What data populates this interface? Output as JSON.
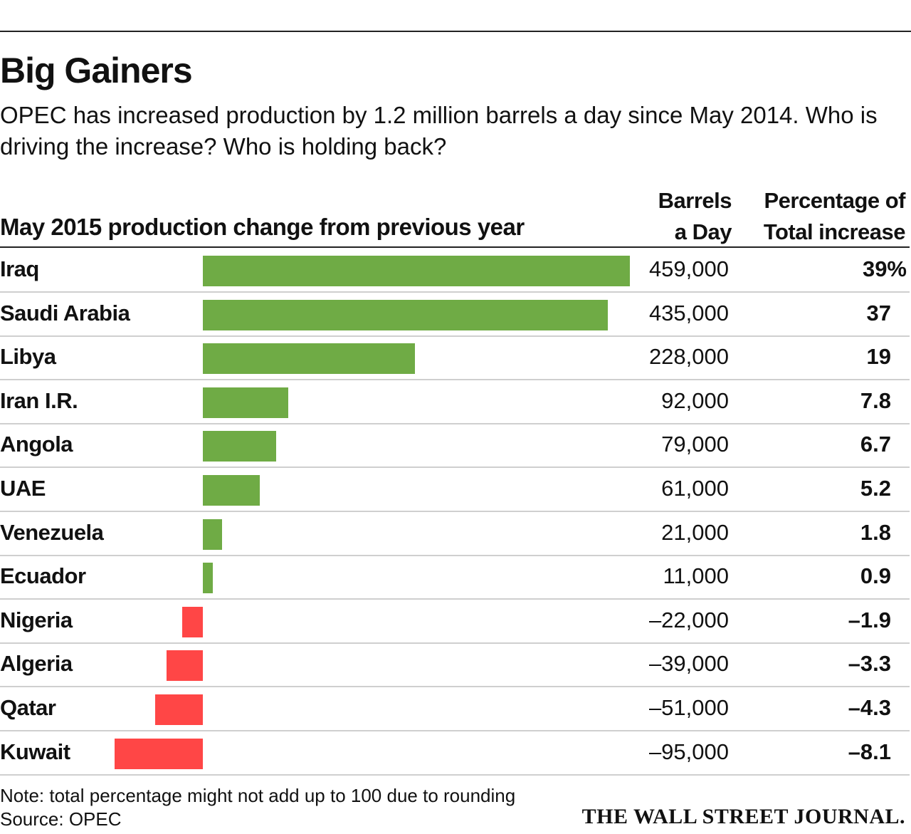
{
  "title": "Big Gainers",
  "subtitle": "OPEC has increased production by 1.2 million barrels a day since May 2014. Who is driving the increase? Who is holding back?",
  "headers": {
    "chart": "May 2015 production change from previous year",
    "bpd_line1": "Barrels",
    "bpd_line2": "a Day",
    "pct_line1": "Percentage of",
    "pct_line2": "Total increase"
  },
  "colors": {
    "positive": "#6fab45",
    "negative": "#ff4646"
  },
  "chart_data": {
    "type": "bar",
    "title": "May 2015 production change from previous year",
    "categories": [
      "Iraq",
      "Saudi Arabia",
      "Libya",
      "Iran I.R.",
      "Angola",
      "UAE",
      "Venezuela",
      "Ecuador",
      "Nigeria",
      "Algeria",
      "Qatar",
      "Kuwait"
    ],
    "values": [
      459000,
      435000,
      228000,
      92000,
      79000,
      61000,
      21000,
      11000,
      -22000,
      -39000,
      -51000,
      -95000
    ],
    "value_labels": [
      "459,000",
      "435,000",
      "228,000",
      "92,000",
      "79,000",
      "61,000",
      "21,000",
      "11,000",
      "–22,000",
      "–39,000",
      "–51,000",
      "–95,000"
    ],
    "percent_labels": [
      "39%",
      "37",
      "19",
      "7.8",
      "6.7",
      "5.2",
      "1.8",
      "0.9",
      "–1.9",
      "–3.3",
      "–4.3",
      "–8.1"
    ]
  },
  "footer": {
    "note": "Note: total percentage might not add up to 100 due to rounding",
    "source": "Source: OPEC",
    "logo": "THE WALL STREET JOURNAL."
  }
}
